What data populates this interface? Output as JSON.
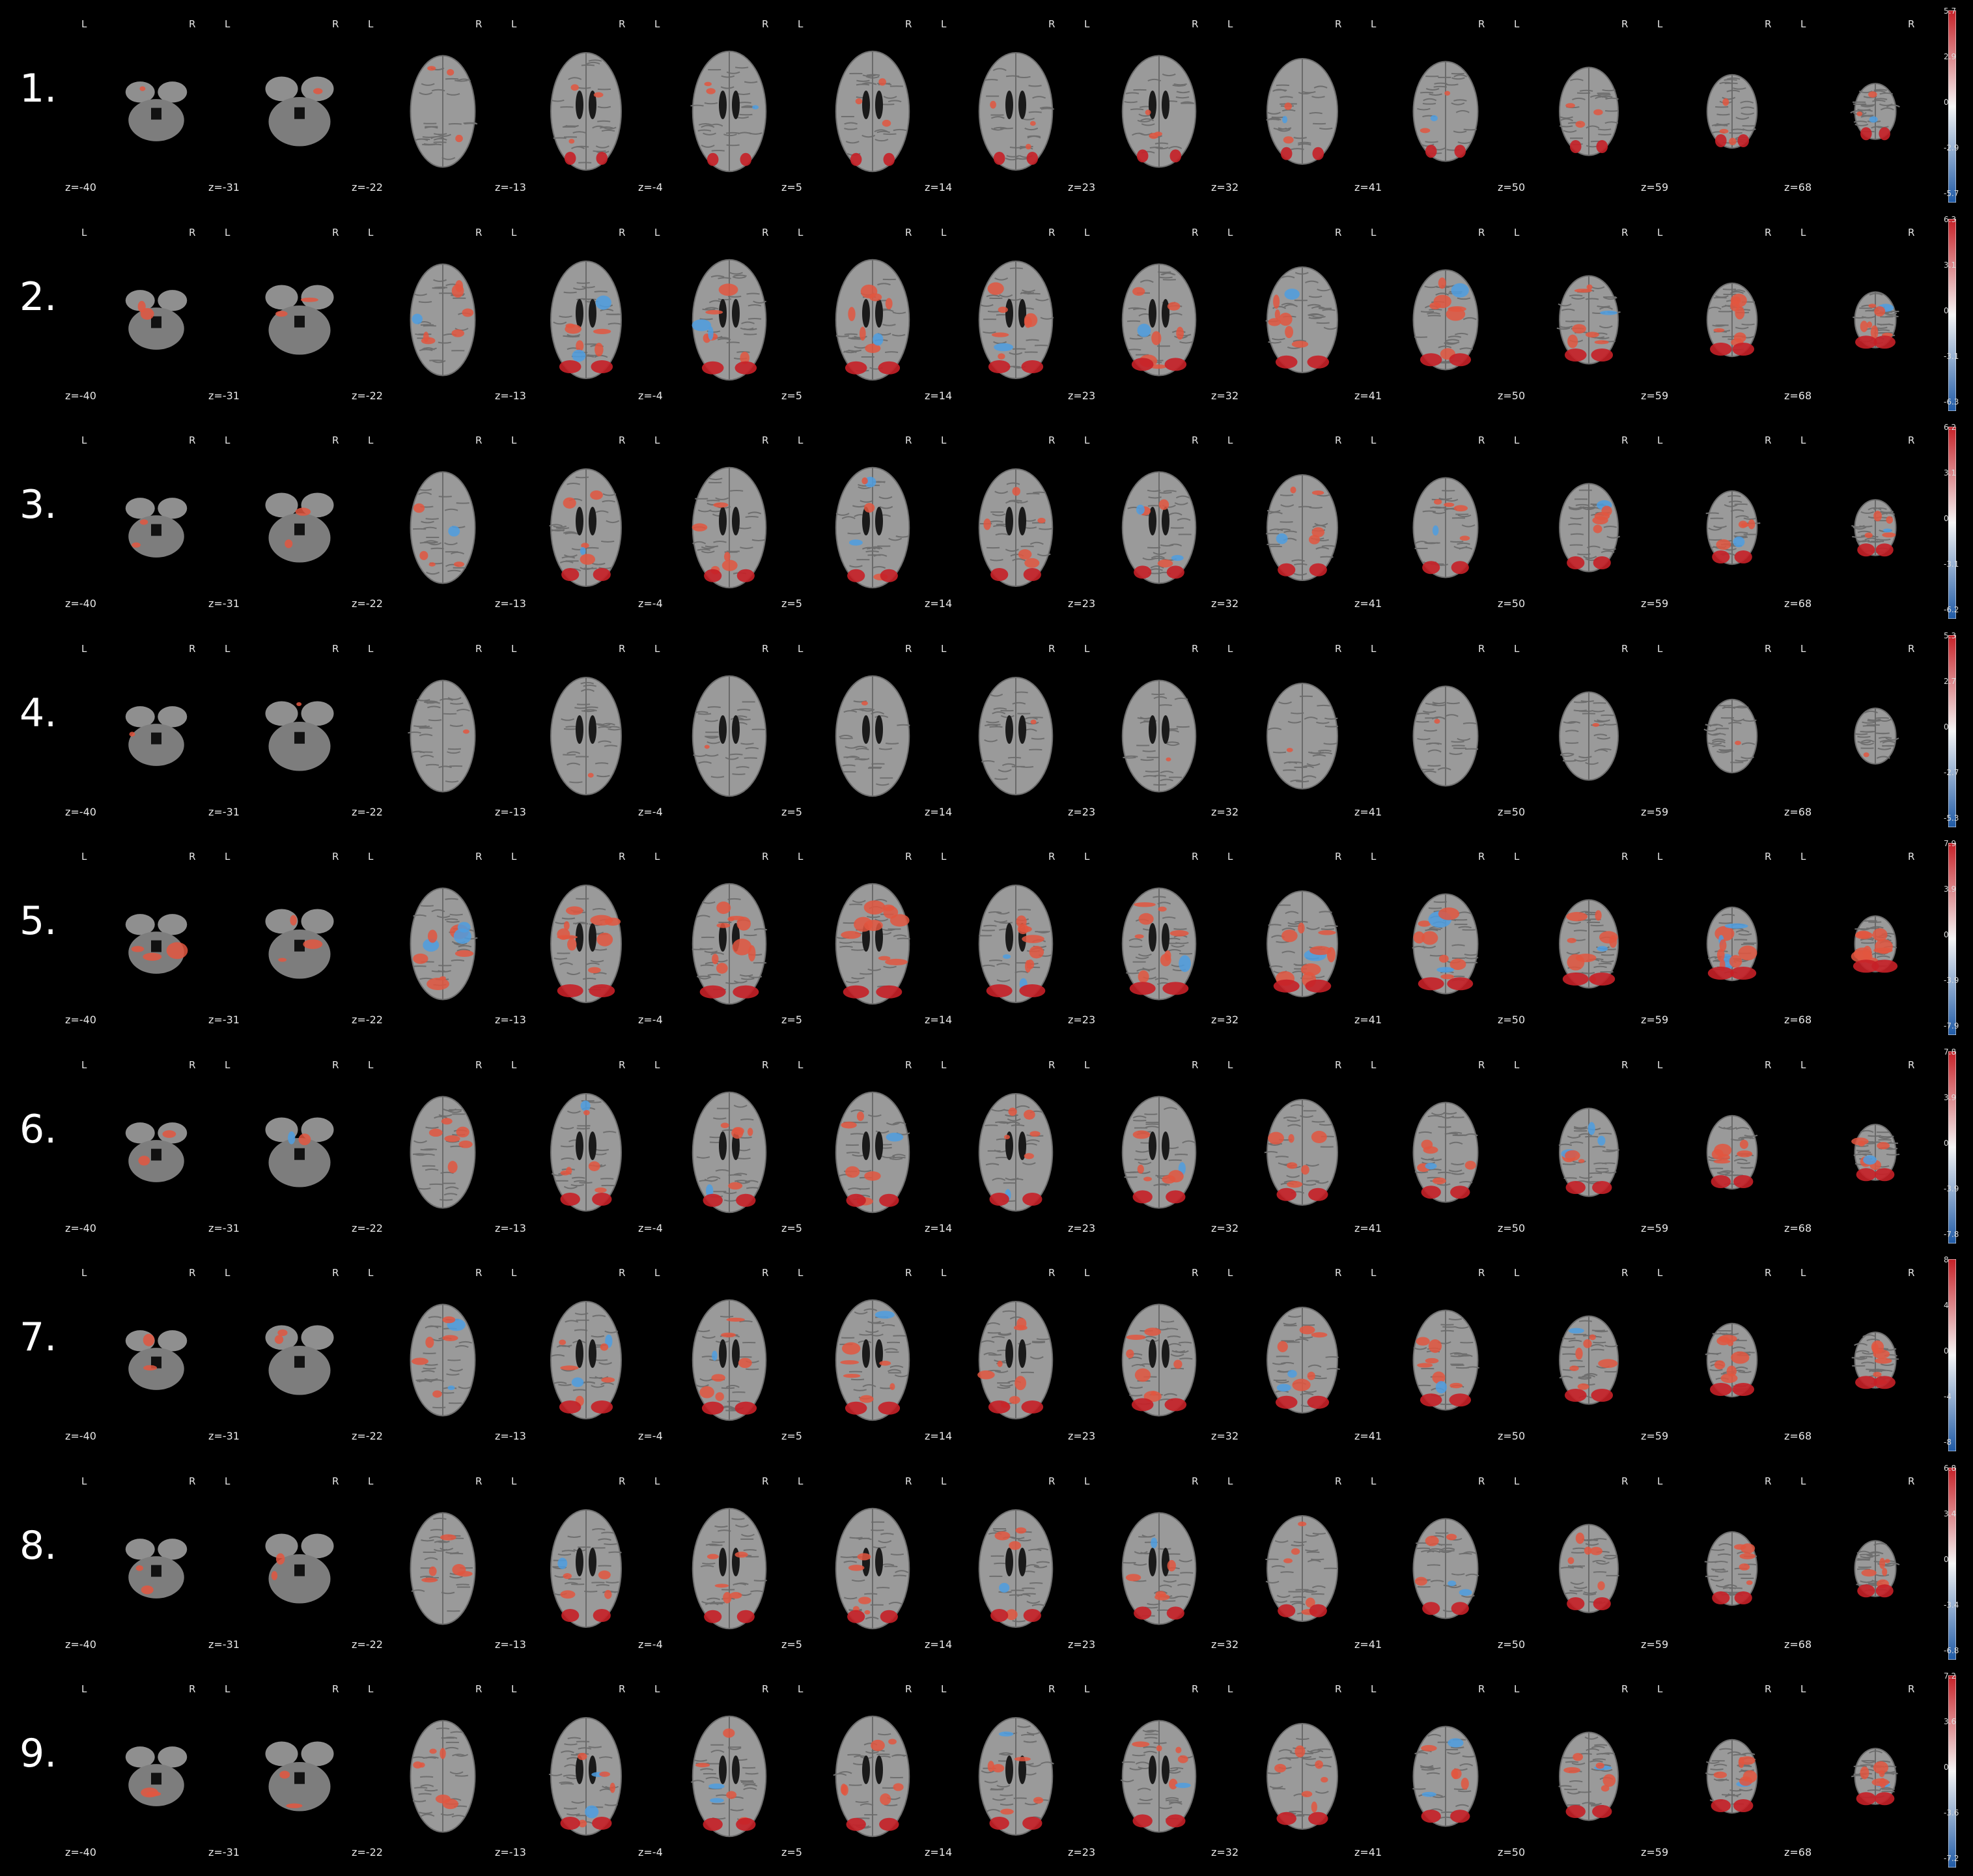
{
  "orientation": {
    "left": "L",
    "right": "R"
  },
  "slices": [
    "z=-40",
    "z=-31",
    "z=-22",
    "z=-13",
    "z=-4",
    "z=5",
    "z=14",
    "z=23",
    "z=32",
    "z=41",
    "z=50",
    "z=59",
    "z=68"
  ],
  "colormap": {
    "positive": "#c62027",
    "mid": "#f4f4f4",
    "negative": "#1f5aa6",
    "overlay_pos": "#e2563f",
    "overlay_neg": "#4d9ee0",
    "brain_gray": "#8f8f8f"
  },
  "rows": [
    {
      "label": "1.",
      "colorbar": [
        "5.7",
        "2.9",
        "0",
        "-2.9",
        "-5.7"
      ]
    },
    {
      "label": "2.",
      "colorbar": [
        "6.3",
        "3.1",
        "0",
        "-3.1",
        "-6.3"
      ]
    },
    {
      "label": "3.",
      "colorbar": [
        "6.2",
        "3.1",
        "0",
        "-3.1",
        "-6.2"
      ]
    },
    {
      "label": "4.",
      "colorbar": [
        "5.3",
        "2.7",
        "0",
        "-2.7",
        "-5.3"
      ]
    },
    {
      "label": "5.",
      "colorbar": [
        "7.9",
        "3.9",
        "0",
        "-3.9",
        "-7.9"
      ]
    },
    {
      "label": "6.",
      "colorbar": [
        "7.8",
        "3.9",
        "0",
        "-3.9",
        "-7.8"
      ]
    },
    {
      "label": "7.",
      "colorbar": [
        "8",
        "4",
        "0",
        "-4",
        "-8"
      ]
    },
    {
      "label": "8.",
      "colorbar": [
        "6.8",
        "3.4",
        "0",
        "-3.4",
        "-6.8"
      ]
    },
    {
      "label": "9.",
      "colorbar": [
        "7.2",
        "3.6",
        "0",
        "-3.6",
        "-7.2"
      ]
    }
  ]
}
